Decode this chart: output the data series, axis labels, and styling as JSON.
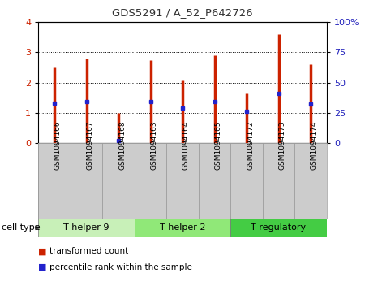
{
  "title": "GDS5291 / A_52_P642726",
  "samples": [
    "GSM1094166",
    "GSM1094167",
    "GSM1094168",
    "GSM1094163",
    "GSM1094164",
    "GSM1094165",
    "GSM1094172",
    "GSM1094173",
    "GSM1094174"
  ],
  "bar_heights": [
    2.5,
    2.8,
    1.0,
    2.75,
    2.08,
    2.9,
    1.63,
    3.6,
    2.6
  ],
  "blue_marker_pos": [
    1.32,
    1.37,
    0.08,
    1.37,
    1.17,
    1.37,
    1.05,
    1.63,
    1.3
  ],
  "bar_color": "#cc2200",
  "blue_color": "#2222cc",
  "ylim_left": [
    0,
    4
  ],
  "ylim_right": [
    0,
    100
  ],
  "yticks_left": [
    0,
    1,
    2,
    3,
    4
  ],
  "yticks_right": [
    0,
    25,
    50,
    75,
    100
  ],
  "ytick_labels_right": [
    "0",
    "25",
    "50",
    "75",
    "100%"
  ],
  "groups": [
    {
      "label": "T helper 9",
      "indices": [
        0,
        1,
        2
      ],
      "color": "#c8f0b8"
    },
    {
      "label": "T helper 2",
      "indices": [
        3,
        4,
        5
      ],
      "color": "#90e878"
    },
    {
      "label": "T regulatory",
      "indices": [
        6,
        7,
        8
      ],
      "color": "#44cc44"
    }
  ],
  "cell_type_label": "cell type",
  "legend_items": [
    {
      "label": "transformed count",
      "color": "#cc2200"
    },
    {
      "label": "percentile rank within the sample",
      "color": "#2222cc"
    }
  ],
  "grid_color": "#000000",
  "background_color": "#ffffff",
  "plot_bg": "#ffffff",
  "sample_label_bg": "#cccccc",
  "tick_label_color_left": "#cc2200",
  "tick_label_color_right": "#2222bb"
}
